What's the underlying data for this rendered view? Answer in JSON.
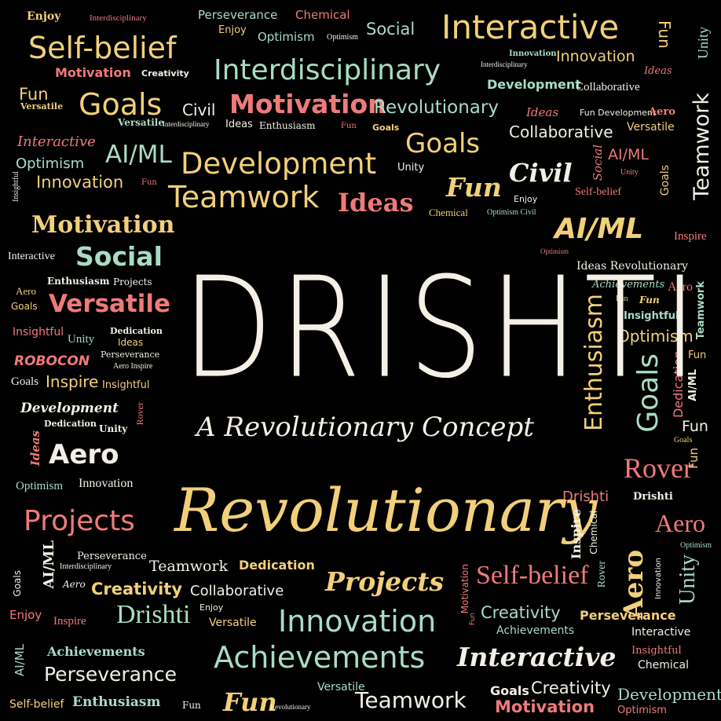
{
  "poster": {
    "title": "DRISHTI",
    "subtitle": "A Revolutionary Concept"
  },
  "colors": {
    "background": "#000000",
    "yellow": "#f2d07a",
    "red": "#ef7a7a",
    "green": "#a9dcc4",
    "white": "#f3efe6"
  },
  "words": [
    "Enjoy",
    "Interdisciplinary",
    "Perseverance",
    "Chemical",
    "Enjoy",
    "Optimism",
    "Optimism",
    "Social",
    "Interactive",
    "Fun",
    "Self-belief",
    "Motivation",
    "Creativity",
    "Interdisciplinary",
    "Innovation",
    "Interdisciplinary",
    "Innovation",
    "Ideas",
    "Unity",
    "Development",
    "Collaborative",
    "Fun",
    "Versatile",
    "Goals",
    "Civil",
    "Motivation",
    "Revolutionary",
    "Ideas",
    "Fun Development",
    "Aero",
    "Teamwork",
    "Versatile",
    "Interdisciplinary",
    "Ideas",
    "Enthusiasm",
    "Fun",
    "Goals",
    "Collaborative",
    "Versatile",
    "Interactive",
    "AI/ML",
    "Optimism",
    "Goals",
    "Innovation",
    "Fun",
    "Development",
    "Unity",
    "Civil",
    "Social",
    "AI/ML",
    "Unity",
    "Goals",
    "Insightful",
    "Teamwork",
    "Ideas",
    "Fun",
    "Enjoy",
    "Self-belief",
    "Chemical",
    "Optimism Civil",
    "Motivation",
    "AI/ML",
    "Inspire",
    "Interactive",
    "Social",
    "Optimism",
    "Ideas Revolutionary",
    "Enthusiasm",
    "Projects",
    "Achievements",
    "Aero",
    "Goals",
    "Versatile",
    "Fun",
    "Fun",
    "Aero",
    "Teamwork",
    "Insightful",
    "Insightful",
    "Dedication",
    "Unity",
    "Ideas",
    "Optimism",
    "ROBOCON",
    "Perseverance",
    "Aero Inspire",
    "Enthusiasm",
    "Goals",
    "Goals",
    "Inspire",
    "Insightful",
    "Fun",
    "Dedication",
    "Development",
    "AI/ML",
    "Dedication",
    "Unity",
    "Rover",
    "Fun",
    "Ideas",
    "Aero",
    "Goals",
    "Optimism",
    "Innovation",
    "Rover",
    "Fun",
    "Drishti",
    "Drishti",
    "Aero",
    "Projects",
    "Revolutionary",
    "Inspire",
    "Chemical",
    "Optimism",
    "Perseverance",
    "AI/ML",
    "Interdisciplinary",
    "Teamwork",
    "Dedication",
    "Aero",
    "Self-belief",
    "Innovation",
    "Unity",
    "Goals",
    "Aero",
    "Creativity",
    "Collaborative",
    "Projects",
    "Rover",
    "Enjoy",
    "Inspire",
    "Drishti",
    "Enjoy",
    "Versatile",
    "Innovation",
    "Motivation",
    "Fun",
    "Creativity",
    "Perseverance",
    "Achievements",
    "Interactive",
    "AI/ML",
    "Achievements",
    "Achievements",
    "Interactive",
    "Insightful",
    "Perseverance",
    "Chemical",
    "Versatile",
    "Self-belief",
    "Enthusiasm",
    "Fun",
    "Fun",
    "Revolutionary",
    "Teamwork",
    "Goals",
    "Creativity",
    "Motivation",
    "Development",
    "Optimism"
  ]
}
